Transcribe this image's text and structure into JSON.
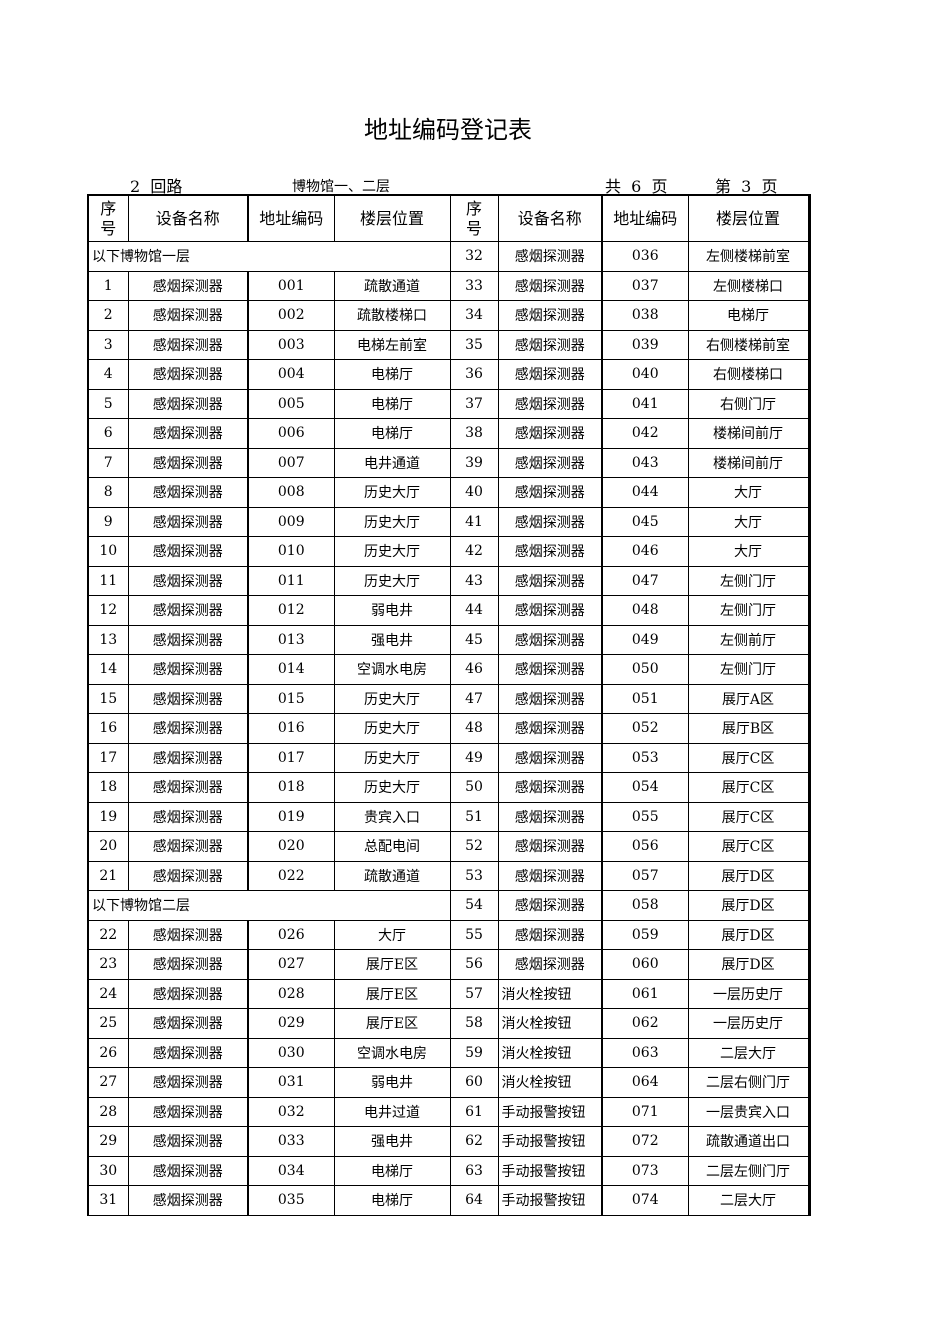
{
  "title": "地址编码登记表",
  "loop": "2  回路",
  "building": "博物馆一、二层",
  "total_pages": "共  6  页",
  "current_page": "第  3  页",
  "headers": [
    "序\n号",
    "设备名称",
    "地址编码",
    "楼层位置",
    "序\n号",
    "设备名称",
    "地址编码",
    "楼层位置"
  ],
  "rows": [
    {
      "section": "以下博物馆一层",
      "r": [
        "32",
        "感烟探测器",
        "036",
        "左侧楼梯前室"
      ]
    },
    {
      "l": [
        "1",
        "感烟探测器",
        "001",
        "疏散通道"
      ],
      "r": [
        "33",
        "感烟探测器",
        "037",
        "左侧楼梯口"
      ]
    },
    {
      "l": [
        "2",
        "感烟探测器",
        "002",
        "疏散楼梯口"
      ],
      "r": [
        "34",
        "感烟探测器",
        "038",
        "电梯厅"
      ]
    },
    {
      "l": [
        "3",
        "感烟探测器",
        "003",
        "电梯左前室"
      ],
      "r": [
        "35",
        "感烟探测器",
        "039",
        "右侧楼梯前室"
      ]
    },
    {
      "l": [
        "4",
        "感烟探测器",
        "004",
        "电梯厅"
      ],
      "r": [
        "36",
        "感烟探测器",
        "040",
        "右侧楼梯口"
      ]
    },
    {
      "l": [
        "5",
        "感烟探测器",
        "005",
        "电梯厅"
      ],
      "r": [
        "37",
        "感烟探测器",
        "041",
        "右侧门厅"
      ]
    },
    {
      "l": [
        "6",
        "感烟探测器",
        "006",
        "电梯厅"
      ],
      "r": [
        "38",
        "感烟探测器",
        "042",
        "楼梯间前厅"
      ]
    },
    {
      "l": [
        "7",
        "感烟探测器",
        "007",
        "电井通道"
      ],
      "r": [
        "39",
        "感烟探测器",
        "043",
        "楼梯间前厅"
      ]
    },
    {
      "l": [
        "8",
        "感烟探测器",
        "008",
        "历史大厅"
      ],
      "r": [
        "40",
        "感烟探测器",
        "044",
        "大厅"
      ]
    },
    {
      "l": [
        "9",
        "感烟探测器",
        "009",
        "历史大厅"
      ],
      "r": [
        "41",
        "感烟探测器",
        "045",
        "大厅"
      ]
    },
    {
      "l": [
        "10",
        "感烟探测器",
        "010",
        "历史大厅"
      ],
      "r": [
        "42",
        "感烟探测器",
        "046",
        "大厅"
      ]
    },
    {
      "l": [
        "11",
        "感烟探测器",
        "011",
        "历史大厅"
      ],
      "r": [
        "43",
        "感烟探测器",
        "047",
        "左侧门厅"
      ]
    },
    {
      "l": [
        "12",
        "感烟探测器",
        "012",
        "弱电井"
      ],
      "r": [
        "44",
        "感烟探测器",
        "048",
        "左侧门厅"
      ]
    },
    {
      "l": [
        "13",
        "感烟探测器",
        "013",
        "强电井"
      ],
      "r": [
        "45",
        "感烟探测器",
        "049",
        "左侧前厅"
      ]
    },
    {
      "l": [
        "14",
        "感烟探测器",
        "014",
        "空调水电房"
      ],
      "r": [
        "46",
        "感烟探测器",
        "050",
        "左侧门厅"
      ]
    },
    {
      "l": [
        "15",
        "感烟探测器",
        "015",
        "历史大厅"
      ],
      "r": [
        "47",
        "感烟探测器",
        "051",
        "展厅A区"
      ]
    },
    {
      "l": [
        "16",
        "感烟探测器",
        "016",
        "历史大厅"
      ],
      "r": [
        "48",
        "感烟探测器",
        "052",
        "展厅B区"
      ]
    },
    {
      "l": [
        "17",
        "感烟探测器",
        "017",
        "历史大厅"
      ],
      "r": [
        "49",
        "感烟探测器",
        "053",
        "展厅C区"
      ]
    },
    {
      "l": [
        "18",
        "感烟探测器",
        "018",
        "历史大厅"
      ],
      "r": [
        "50",
        "感烟探测器",
        "054",
        "展厅C区"
      ]
    },
    {
      "l": [
        "19",
        "感烟探测器",
        "019",
        "贵宾入口"
      ],
      "r": [
        "51",
        "感烟探测器",
        "055",
        "展厅C区"
      ]
    },
    {
      "l": [
        "20",
        "感烟探测器",
        "020",
        "总配电间"
      ],
      "r": [
        "52",
        "感烟探测器",
        "056",
        "展厅C区"
      ]
    },
    {
      "l": [
        "21",
        "感烟探测器",
        "022",
        "疏散通道"
      ],
      "r": [
        "53",
        "感烟探测器",
        "057",
        "展厅D区"
      ]
    },
    {
      "section": "以下博物馆二层",
      "r": [
        "54",
        "感烟探测器",
        "058",
        "展厅D区"
      ]
    },
    {
      "l": [
        "22",
        "感烟探测器",
        "026",
        "大厅"
      ],
      "r": [
        "55",
        "感烟探测器",
        "059",
        "展厅D区"
      ]
    },
    {
      "l": [
        "23",
        "感烟探测器",
        "027",
        "展厅E区"
      ],
      "r": [
        "56",
        "感烟探测器",
        "060",
        "展厅D区"
      ]
    },
    {
      "l": [
        "24",
        "感烟探测器",
        "028",
        "展厅E区"
      ],
      "r": [
        "57",
        "消火栓按钮",
        "061",
        "一层历史厅"
      ]
    },
    {
      "l": [
        "25",
        "感烟探测器",
        "029",
        "展厅E区"
      ],
      "r": [
        "58",
        "消火栓按钮",
        "062",
        "一层历史厅"
      ]
    },
    {
      "l": [
        "26",
        "感烟探测器",
        "030",
        "空调水电房"
      ],
      "r": [
        "59",
        "消火栓按钮",
        "063",
        "二层大厅"
      ]
    },
    {
      "l": [
        "27",
        "感烟探测器",
        "031",
        "弱电井"
      ],
      "r": [
        "60",
        "消火栓按钮",
        "064",
        "二层右侧门厅"
      ]
    },
    {
      "l": [
        "28",
        "感烟探测器",
        "032",
        "电井过道"
      ],
      "r": [
        "61",
        "手动报警按钮",
        "071",
        "一层贵宾入口"
      ]
    },
    {
      "l": [
        "29",
        "感烟探测器",
        "033",
        "强电井"
      ],
      "r": [
        "62",
        "手动报警按钮",
        "072",
        "疏散通道出口"
      ]
    },
    {
      "l": [
        "30",
        "感烟探测器",
        "034",
        "电梯厅"
      ],
      "r": [
        "63",
        "手动报警按钮",
        "073",
        "二层左侧门厅"
      ]
    },
    {
      "l": [
        "31",
        "感烟探测器",
        "035",
        "电梯厅"
      ],
      "r": [
        "64",
        "手动报警按钮",
        "074",
        "二层大厅"
      ]
    }
  ]
}
